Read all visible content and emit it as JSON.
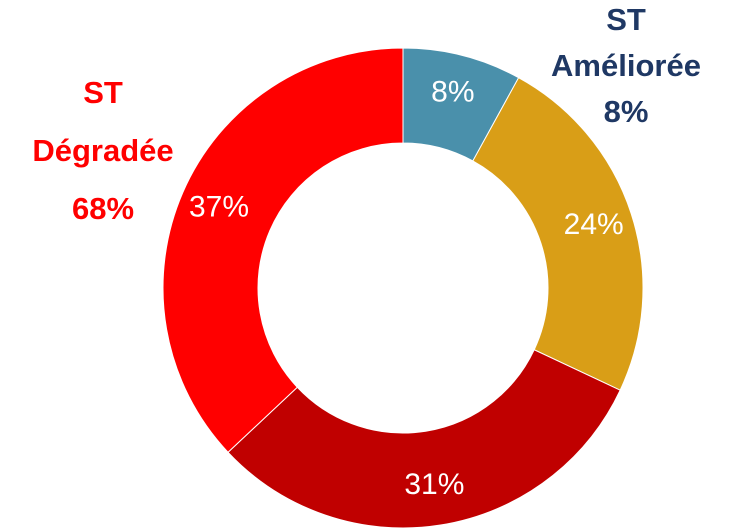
{
  "chart_data": {
    "type": "donut",
    "categories": [
      "ST Améliorée",
      "",
      "",
      ""
    ],
    "values": [
      8,
      24,
      31,
      37
    ],
    "value_labels": [
      "8%",
      "24%",
      "31%",
      "37%"
    ],
    "colors": [
      "#4a90ab",
      "#d99e17",
      "#c00000",
      "#ff0000"
    ],
    "annotations": [
      {
        "lines": [
          "ST",
          "Dégradée",
          "68%"
        ],
        "color": "#ff0000"
      },
      {
        "lines": [
          "ST",
          "Améliorée",
          "8%"
        ],
        "color": "#1f3864"
      }
    ]
  }
}
